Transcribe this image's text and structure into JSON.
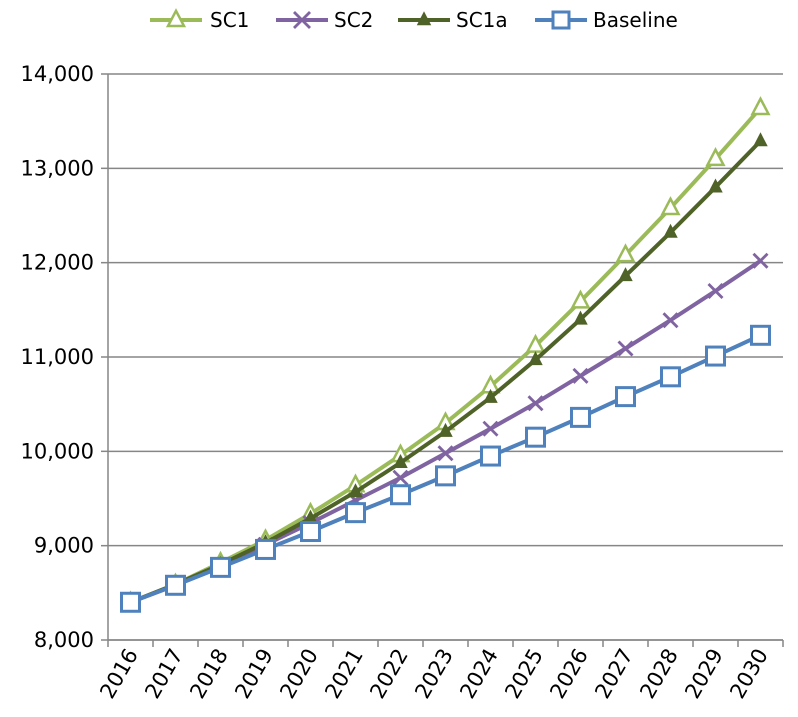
{
  "chart_data": {
    "type": "line",
    "title": "",
    "xlabel": "",
    "ylabel": "",
    "x": [
      "2016",
      "2017",
      "2018",
      "2019",
      "2020",
      "2021",
      "2022",
      "2023",
      "2024",
      "2025",
      "2026",
      "2027",
      "2028",
      "2029",
      "2030"
    ],
    "ylim": [
      8000,
      14000
    ],
    "yticks": [
      8000,
      9000,
      10000,
      11000,
      12000,
      13000,
      14000
    ],
    "ytick_labels": [
      "8,000",
      "9,000",
      "10,000",
      "11,000",
      "12,000",
      "13,000",
      "14,000"
    ],
    "grid": "horizontal",
    "legend": "top",
    "series": [
      {
        "name": "SC1",
        "color": "#9bbb59",
        "marker": "triangle-open",
        "values": [
          8400,
          8590,
          8820,
          9060,
          9340,
          9640,
          9960,
          10300,
          10690,
          11120,
          11590,
          12080,
          12580,
          13100,
          13640
        ]
      },
      {
        "name": "SC2",
        "color": "#8064a2",
        "marker": "x",
        "values": [
          8400,
          8580,
          8780,
          9010,
          9240,
          9480,
          9720,
          9980,
          10240,
          10510,
          10800,
          11090,
          11390,
          11700,
          12020
        ]
      },
      {
        "name": "SC1a",
        "color": "#4f6228",
        "marker": "triangle-filled",
        "values": [
          8400,
          8590,
          8800,
          9030,
          9290,
          9570,
          9880,
          10210,
          10570,
          10970,
          11400,
          11860,
          12320,
          12800,
          13290
        ]
      },
      {
        "name": "Baseline",
        "color": "#4f81bd",
        "marker": "square-open",
        "values": [
          8400,
          8580,
          8770,
          8960,
          9150,
          9350,
          9540,
          9740,
          9950,
          10150,
          10360,
          10580,
          10790,
          11010,
          11230
        ]
      }
    ]
  }
}
